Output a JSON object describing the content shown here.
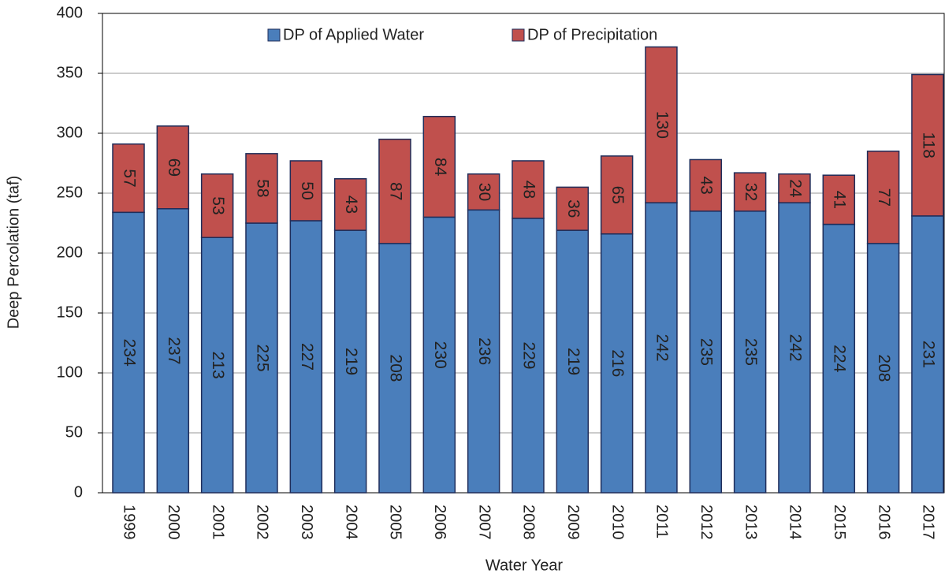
{
  "chart_data": {
    "type": "stacked_bar",
    "x_label": "Water Year",
    "y_label": "Deep Percolation (taf)",
    "categories": [
      "1999",
      "2000",
      "2001",
      "2002",
      "2003",
      "2004",
      "2005",
      "2006",
      "2007",
      "2008",
      "2009",
      "2010",
      "2011",
      "2012",
      "2013",
      "2014",
      "2015",
      "2016",
      "2017"
    ],
    "series": [
      {
        "name": "DP of Applied Water",
        "color": "#4a7ebb",
        "values": [
          234,
          237,
          213,
          225,
          227,
          219,
          208,
          230,
          236,
          229,
          219,
          216,
          242,
          235,
          235,
          242,
          224,
          208,
          231
        ]
      },
      {
        "name": "DP of Precipitation",
        "color": "#c0504d",
        "values": [
          57,
          69,
          53,
          58,
          50,
          43,
          87,
          84,
          30,
          48,
          36,
          65,
          130,
          43,
          32,
          24,
          41,
          77,
          118
        ]
      }
    ],
    "ylim": [
      0,
      400
    ],
    "yticks": [
      0,
      50,
      100,
      150,
      200,
      250,
      300,
      350,
      400
    ],
    "grid": true,
    "legend": "top"
  }
}
